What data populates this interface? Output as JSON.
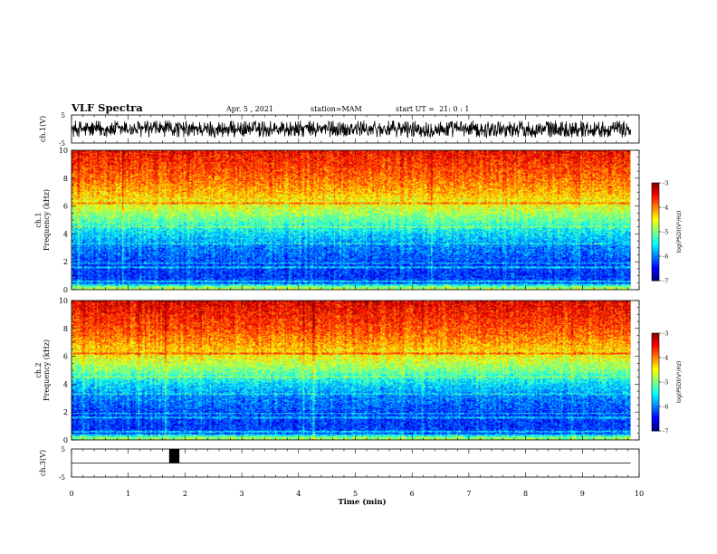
{
  "header": {
    "title": "VLF Spectra",
    "date": "Apr. 5 , 2021",
    "station": "station=MAM",
    "start": "start UT =  21: 0 : 1"
  },
  "chart_data": [
    {
      "type": "line",
      "panel": "ch1-waveform",
      "ylabel": "ch.1(V)",
      "ylim": [
        -5,
        5
      ],
      "yticks": [
        "5",
        "-5"
      ],
      "xlim": [
        0,
        10
      ],
      "signal_description_values": {
        "amplitude_range_V": [
          -3.0,
          3.0
        ],
        "x_end_min": 9.85
      }
    },
    {
      "type": "heatmap",
      "panel": "ch1-spectrogram",
      "ylabel_line1": "ch.1",
      "ylabel_line2": "Frequency (kHz)",
      "ylim": [
        0,
        10
      ],
      "yticks": [
        "0",
        "2",
        "4",
        "6",
        "8",
        "10"
      ],
      "xlim": [
        0,
        10
      ],
      "x_data_end": 9.85,
      "colorbar": {
        "label": "log(PSD)(V²/Hz)",
        "range": [
          -7,
          -3
        ],
        "ticks": [
          "-3",
          "-4",
          "-5",
          "-6",
          "-7"
        ]
      },
      "frequency_profile_logpsd": {
        "freq_kHz": [
          0,
          0.5,
          1,
          2,
          3,
          4,
          5,
          6,
          7,
          8,
          9,
          10
        ],
        "log_psd": [
          -5.5,
          -6.2,
          -6.3,
          -6.2,
          -6.0,
          -5.6,
          -5.1,
          -4.6,
          -4.2,
          -3.9,
          -3.7,
          -3.5
        ]
      }
    },
    {
      "type": "heatmap",
      "panel": "ch2-spectrogram",
      "ylabel_line1": "ch.2",
      "ylabel_line2": "Frequency (kHz)",
      "ylim": [
        0,
        10
      ],
      "yticks": [
        "0",
        "2",
        "4",
        "6",
        "8",
        "10"
      ],
      "xlim": [
        0,
        10
      ],
      "x_data_end": 9.85,
      "colorbar": {
        "label": "log(PSD)(V²/Hz)",
        "range": [
          -7,
          -3
        ],
        "ticks": [
          "-3",
          "-4",
          "-5",
          "-6",
          "-7"
        ]
      },
      "frequency_profile_logpsd": {
        "freq_kHz": [
          0,
          0.5,
          1,
          2,
          3,
          4,
          5,
          6,
          7,
          8,
          9,
          10
        ],
        "log_psd": [
          -5.6,
          -6.2,
          -6.3,
          -6.2,
          -6.0,
          -5.6,
          -5.0,
          -4.5,
          -4.1,
          -3.8,
          -3.6,
          -3.4
        ]
      }
    },
    {
      "type": "line",
      "panel": "ch3-trigger",
      "ylabel": "ch.3(V)",
      "ylim": [
        -5,
        5
      ],
      "yticks": [
        "5",
        "-5"
      ],
      "xlim": [
        0,
        10
      ],
      "xlabel": "Time (min)",
      "xticks": [
        "0",
        "1",
        "2",
        "3",
        "4",
        "5",
        "6",
        "7",
        "8",
        "9",
        "10"
      ],
      "baseline_V": 0,
      "pulse": {
        "x_start_min": 1.72,
        "x_end_min": 1.9,
        "y_V": 5
      }
    }
  ]
}
